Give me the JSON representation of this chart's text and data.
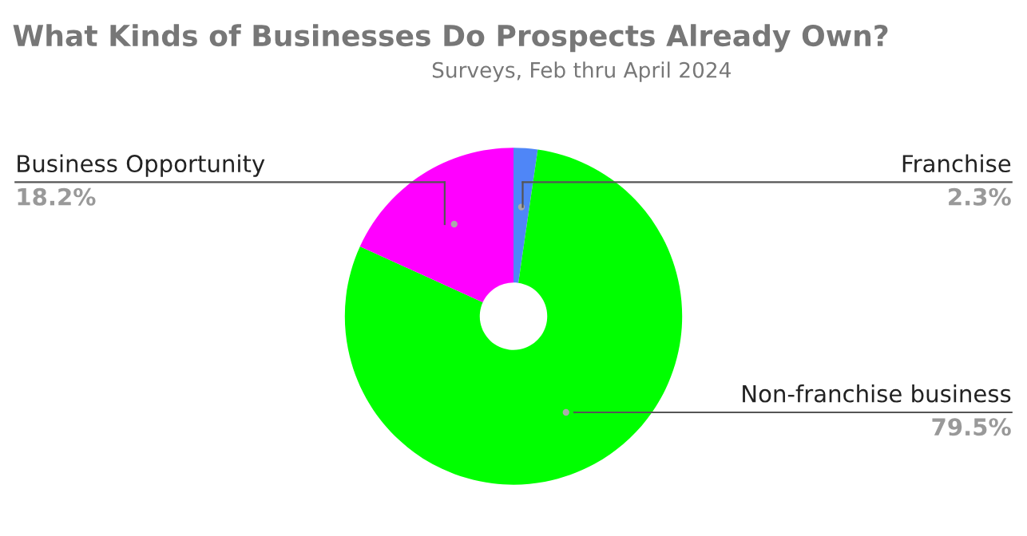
{
  "chart_data": {
    "type": "donut",
    "title": "What Kinds of Businesses Do Prospects Already Own?",
    "annotations": [
      "Surveys, Feb thru April 2024"
    ],
    "categories": [
      "Franchise",
      "Non-franchise business",
      "Business Opportunity"
    ],
    "values": [
      2.3,
      79.5,
      18.2
    ],
    "value_labels": [
      "2.3%",
      "79.5%",
      "18.2%"
    ],
    "colors": [
      "#4f86f7",
      "#00ff00",
      "#ff00ff"
    ],
    "legend": false
  }
}
